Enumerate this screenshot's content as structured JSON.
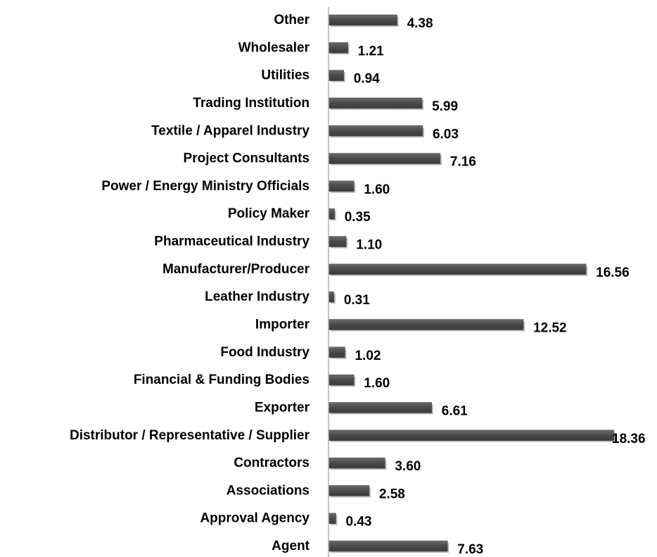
{
  "chart_data": {
    "type": "hbar",
    "categories": [
      "Other",
      "Wholesaler",
      "Utilities",
      "Trading Institution",
      "Textile / Apparel Industry",
      "Project Consultants",
      "Power / Energy Ministry Officials",
      "Policy Maker",
      "Pharmaceutical Industry",
      "Manufacturer/Producer",
      "Leather Industry",
      "Importer",
      "Food Industry",
      "Financial & Funding Bodies",
      "Exporter",
      "Distributor / Representative / Supplier",
      "Contractors",
      "Associations",
      "Approval Agency",
      "Agent"
    ],
    "values": [
      4.38,
      1.21,
      0.94,
      5.99,
      6.03,
      7.16,
      1.6,
      0.35,
      1.1,
      16.56,
      0.31,
      12.52,
      1.02,
      1.6,
      6.61,
      18.36,
      3.6,
      2.58,
      0.43,
      7.63
    ],
    "value_labels": [
      "4.38",
      "1.21",
      "0.94",
      "5.99",
      "6.03",
      "7.16",
      "1.60",
      "0.35",
      "1.10",
      "16.56",
      "0.31",
      "12.52",
      "1.02",
      "1.60",
      "6.61",
      "18.36",
      "3.60",
      "2.58",
      "0.43",
      "7.63"
    ],
    "color": "#555555",
    "xlim": [
      0,
      20
    ]
  }
}
